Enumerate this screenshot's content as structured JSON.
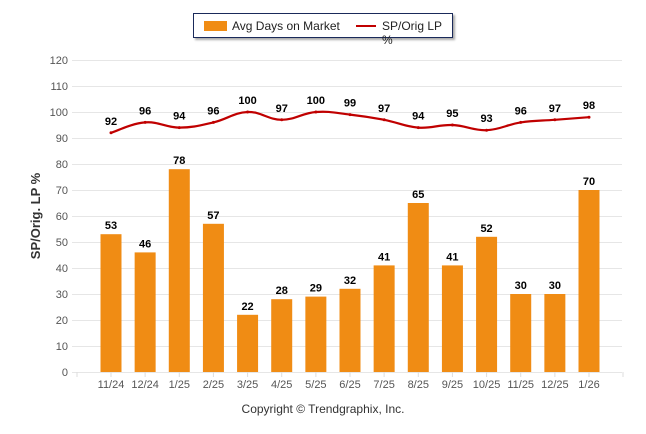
{
  "chart_data": {
    "type": "bar+line",
    "categories": [
      "11/24",
      "12/24",
      "1/25",
      "2/25",
      "3/25",
      "4/25",
      "5/25",
      "6/25",
      "7/25",
      "8/25",
      "9/25",
      "10/25",
      "11/25",
      "12/25",
      "1/26"
    ],
    "series": [
      {
        "name": "Avg Days on Market",
        "type": "bar",
        "color": "#F08C14",
        "values": [
          53,
          46,
          78,
          57,
          22,
          28,
          29,
          32,
          41,
          65,
          41,
          52,
          30,
          30,
          70
        ]
      },
      {
        "name": "SP/Orig LP %",
        "type": "line",
        "color": "#C00000",
        "values": [
          92,
          96,
          94,
          96,
          100,
          97,
          100,
          99,
          97,
          94,
          95,
          93,
          96,
          97,
          98
        ]
      }
    ],
    "ylabel": "SP/Orig. LP %",
    "ylim": [
      0,
      120
    ],
    "yticks": [
      "0",
      "10",
      "20",
      "30",
      "40",
      "50",
      "60",
      "70",
      "80",
      "90",
      "100",
      "110",
      "120"
    ],
    "grid": true,
    "legend_position": "top-center"
  },
  "legend": {
    "bar_label": "Avg Days on Market",
    "line_label": "SP/Orig LP %"
  },
  "footer": {
    "copyright": "Copyright © Trendgraphix, Inc."
  }
}
